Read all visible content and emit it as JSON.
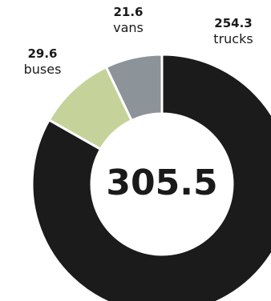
{
  "chart_data": {
    "type": "pie",
    "variant": "donut",
    "total_label": "305.5",
    "slices": [
      {
        "name": "trucks",
        "value": 254.3,
        "value_label": "254.3",
        "color": "#1b1b1b"
      },
      {
        "name": "buses",
        "value": 29.6,
        "value_label": "29.6",
        "color": "#c5d39b"
      },
      {
        "name": "vans",
        "value": 21.6,
        "value_label": "21.6",
        "color": "#8c9399"
      }
    ],
    "legend": "none"
  }
}
